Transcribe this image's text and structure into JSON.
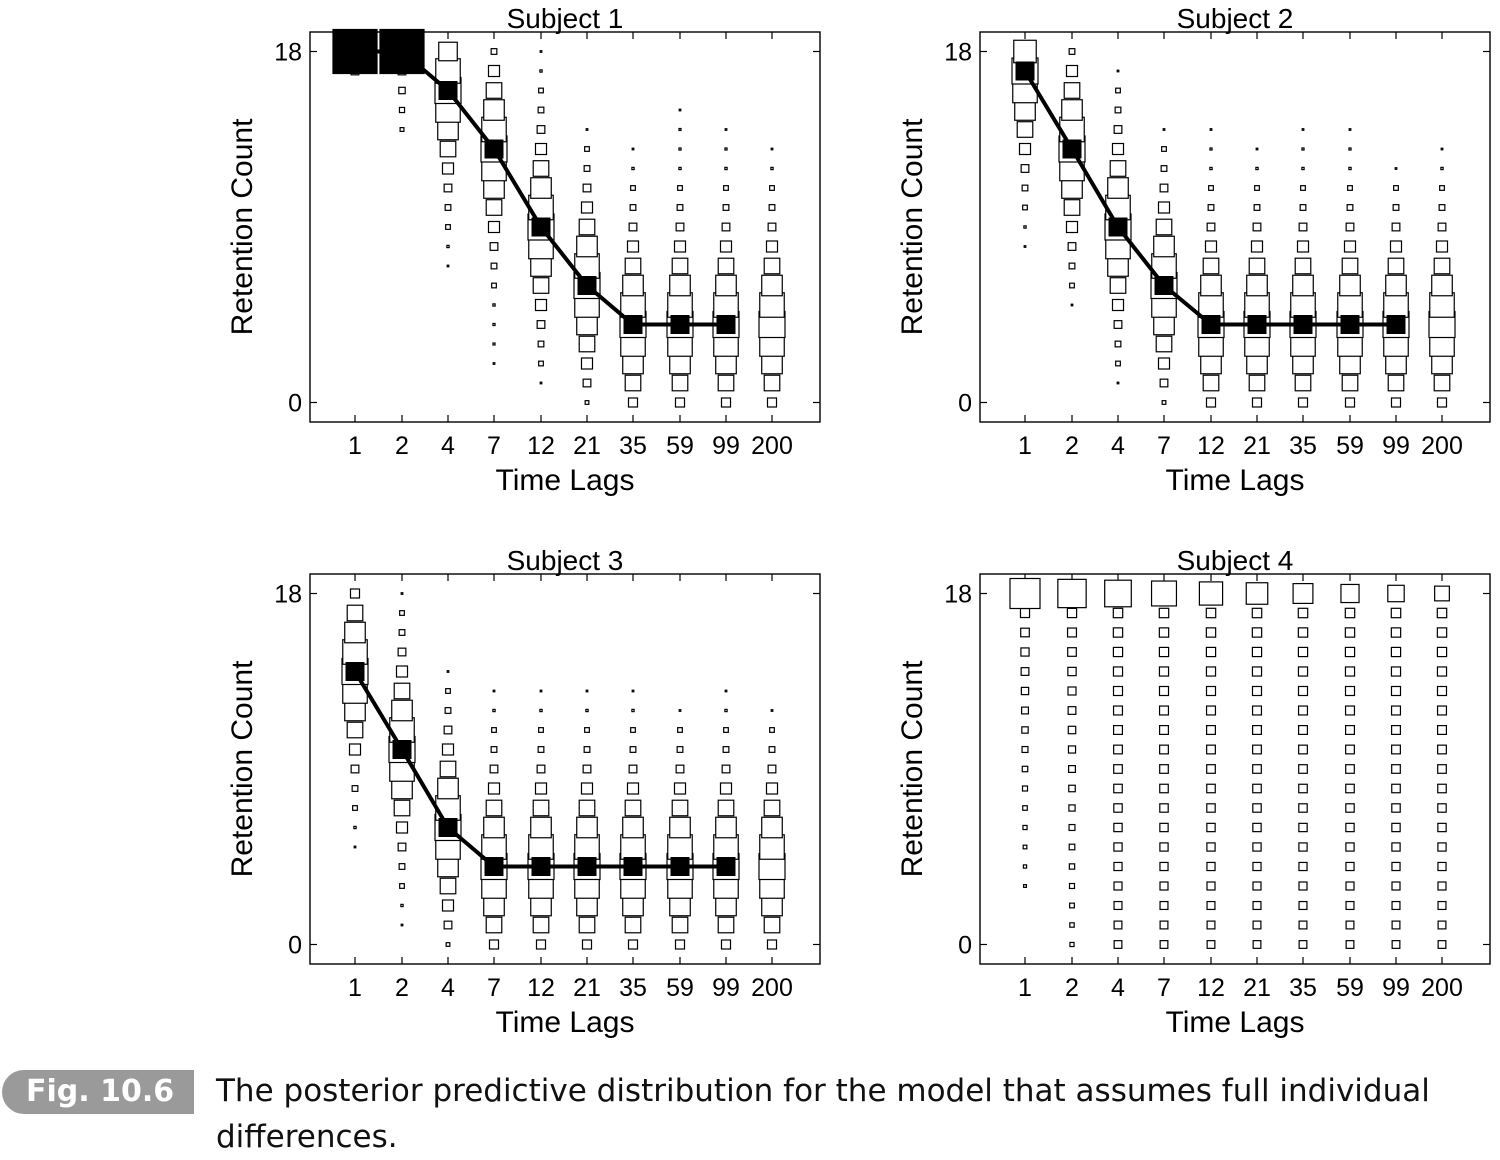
{
  "caption": {
    "label": "Fig. 10.6",
    "text": "The posterior predictive distribution for the model that assumes full individual differences."
  },
  "chart_data": [
    {
      "type": "scatter",
      "title": "Subject 1",
      "xlabel": "Time Lags",
      "ylabel": "Retention Count",
      "x_categories": [
        "1",
        "2",
        "4",
        "7",
        "12",
        "21",
        "35",
        "59",
        "99",
        "200"
      ],
      "yticks": [
        "0",
        "18"
      ],
      "ylim": [
        -1,
        19
      ],
      "observed": [
        18,
        18,
        16,
        13,
        9,
        6,
        4,
        4,
        4,
        null
      ],
      "predictive_range": [
        [
          17,
          18
        ],
        [
          14,
          18
        ],
        [
          7,
          18
        ],
        [
          2,
          18
        ],
        [
          1,
          18
        ],
        [
          0,
          14
        ],
        [
          0,
          13
        ],
        [
          0,
          15
        ],
        [
          0,
          14
        ],
        [
          0,
          13
        ]
      ],
      "predictive_mode": [
        18,
        18,
        16,
        13,
        9,
        6,
        4,
        4,
        4,
        4
      ]
    },
    {
      "type": "scatter",
      "title": "Subject 2",
      "xlabel": "Time Lags",
      "ylabel": "Retention Count",
      "x_categories": [
        "1",
        "2",
        "4",
        "7",
        "12",
        "21",
        "35",
        "59",
        "99",
        "200"
      ],
      "yticks": [
        "0",
        "18"
      ],
      "ylim": [
        -1,
        19
      ],
      "observed": [
        17,
        13,
        9,
        6,
        4,
        4,
        4,
        4,
        4,
        null
      ],
      "predictive_range": [
        [
          8,
          18
        ],
        [
          5,
          18
        ],
        [
          1,
          17
        ],
        [
          0,
          14
        ],
        [
          0,
          14
        ],
        [
          0,
          13
        ],
        [
          0,
          14
        ],
        [
          0,
          14
        ],
        [
          0,
          12
        ],
        [
          0,
          13
        ]
      ],
      "predictive_mode": [
        17,
        13,
        9,
        6,
        4,
        4,
        4,
        4,
        4,
        4
      ]
    },
    {
      "type": "scatter",
      "title": "Subject 3",
      "xlabel": "Time Lags",
      "ylabel": "Retention Count",
      "x_categories": [
        "1",
        "2",
        "4",
        "7",
        "12",
        "21",
        "35",
        "59",
        "99",
        "200"
      ],
      "yticks": [
        "0",
        "18"
      ],
      "ylim": [
        -1,
        19
      ],
      "observed": [
        14,
        10,
        6,
        4,
        4,
        4,
        4,
        4,
        4,
        null
      ],
      "predictive_range": [
        [
          5,
          18
        ],
        [
          1,
          18
        ],
        [
          0,
          14
        ],
        [
          0,
          13
        ],
        [
          0,
          13
        ],
        [
          0,
          13
        ],
        [
          0,
          13
        ],
        [
          0,
          12
        ],
        [
          0,
          13
        ],
        [
          0,
          12
        ]
      ],
      "predictive_mode": [
        14,
        10,
        6,
        4,
        4,
        4,
        4,
        4,
        4,
        4
      ]
    },
    {
      "type": "scatter",
      "title": "Subject 4",
      "xlabel": "Time Lags",
      "ylabel": "Retention Count",
      "x_categories": [
        "1",
        "2",
        "4",
        "7",
        "12",
        "21",
        "35",
        "59",
        "99",
        "200"
      ],
      "yticks": [
        "0",
        "18"
      ],
      "ylim": [
        -1,
        19
      ],
      "observed": [
        null,
        null,
        null,
        null,
        null,
        null,
        null,
        null,
        null,
        null
      ],
      "predictive_range": [
        [
          3,
          18
        ],
        [
          0,
          18
        ],
        [
          0,
          18
        ],
        [
          0,
          18
        ],
        [
          0,
          18
        ],
        [
          0,
          18
        ],
        [
          0,
          18
        ],
        [
          0,
          18
        ],
        [
          0,
          18
        ],
        [
          0,
          18
        ]
      ],
      "predictive_mode": [
        18,
        18,
        18,
        18,
        18,
        18,
        18,
        18,
        18,
        18
      ]
    }
  ]
}
